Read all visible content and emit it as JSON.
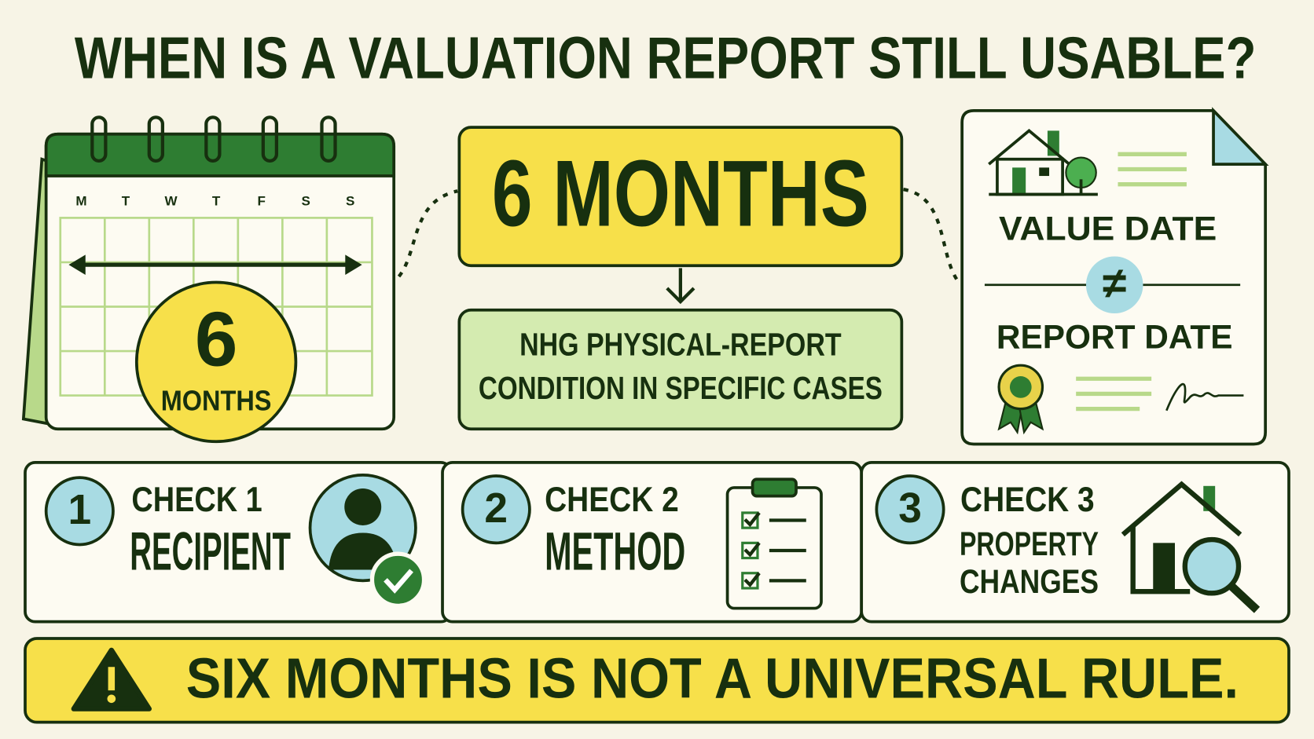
{
  "title": "WHEN IS A VALUATION REPORT STILL USABLE?",
  "calendar": {
    "weekdays": [
      "M",
      "T",
      "W",
      "T",
      "F",
      "S",
      "S"
    ],
    "badge_number": "6",
    "badge_unit": "MONTHS"
  },
  "main_period": "6 MONTHS",
  "condition": {
    "lines": [
      "NHG PHYSICAL-REPORT",
      "CONDITION IN SPECIFIC CASES"
    ]
  },
  "document": {
    "top_label": "VALUE DATE",
    "symbol": "≠",
    "bottom_label": "REPORT DATE"
  },
  "checks": [
    {
      "number": "1",
      "label": "CHECK 1",
      "lines": [
        "RECIPIENT"
      ]
    },
    {
      "number": "2",
      "label": "CHECK 2",
      "lines": [
        "METHOD"
      ]
    },
    {
      "number": "3",
      "label": "CHECK 3",
      "lines": [
        "PROPERTY",
        "CHANGES"
      ]
    }
  ],
  "warning": "SIX MONTHS IS NOT A UNIVERSAL RULE."
}
